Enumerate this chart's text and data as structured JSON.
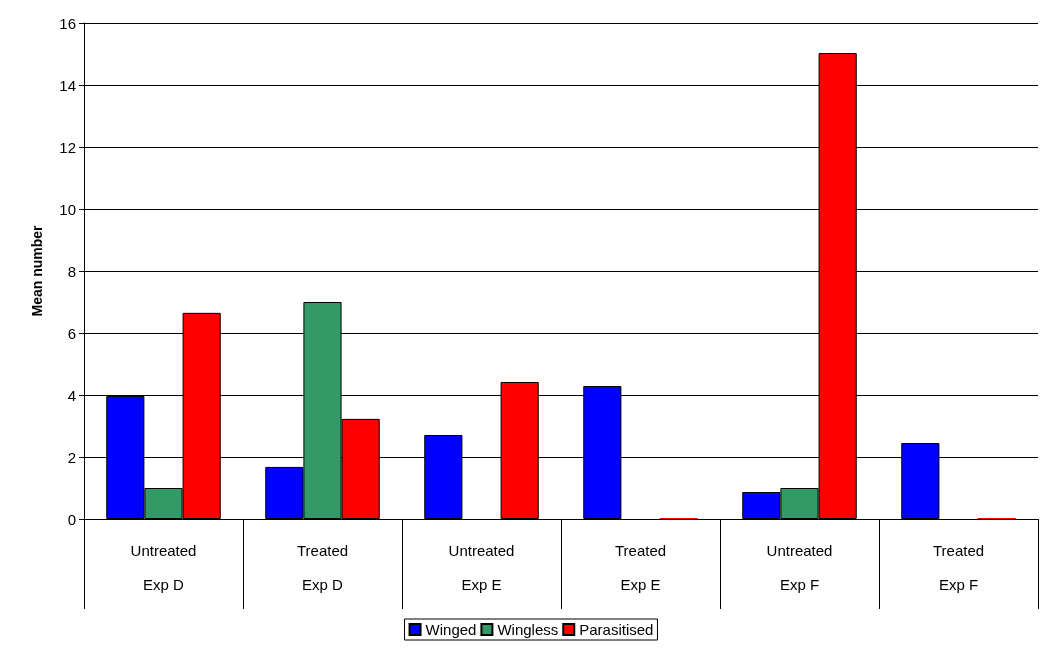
{
  "chart_data": {
    "type": "bar",
    "ylabel": "Mean number",
    "categories": [
      "Untreated\nExp D",
      "Treated\nExp D",
      "Untreated\nExp E",
      "Treated\nExp E",
      "Untreated\nExp F",
      "Treated\nExp F"
    ],
    "series": [
      {
        "name": "Winged",
        "color": "#0000ff",
        "values": [
          3.97,
          1.68,
          2.71,
          4.29,
          0.87,
          2.45
        ]
      },
      {
        "name": "Wingless",
        "color": "#339966",
        "values": [
          1.0,
          7.0,
          null,
          null,
          1.0,
          null
        ]
      },
      {
        "name": "Parasitised",
        "color": "#ff0000",
        "values": [
          6.65,
          3.23,
          4.42,
          0.03,
          15.03,
          0.03
        ]
      }
    ],
    "ylim": [
      0,
      16
    ],
    "yticks": [
      0,
      2,
      4,
      6,
      8,
      10,
      12,
      14,
      16
    ],
    "grid": "y",
    "legend": "bottom"
  }
}
